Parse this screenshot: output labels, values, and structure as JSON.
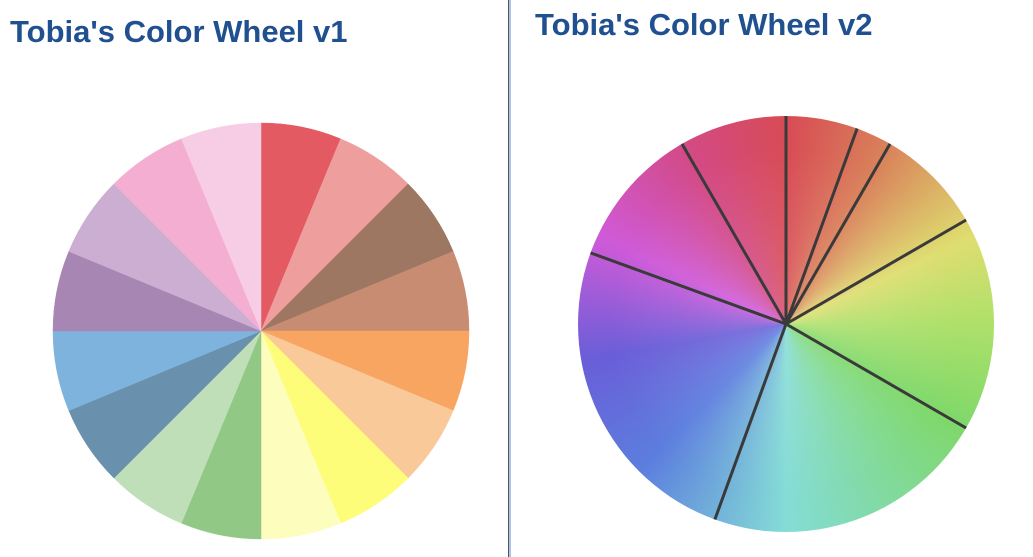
{
  "v1": {
    "title": "Tobia's Color Wheel v1",
    "slices": [
      "#e35a63",
      "#ef9e9e",
      "#9e7762",
      "#c88c72",
      "#f8a561",
      "#f9c99a",
      "#fdfd7a",
      "#fdfdbd",
      "#92c886",
      "#bfdfb8",
      "#6990ad",
      "#7db3dd",
      "#a886b4",
      "#cbaed2",
      "#f4aed2",
      "#f7cde5"
    ]
  },
  "v2": {
    "title": "Tobia's Color Wheel v2",
    "gradient_stops": [
      {
        "deg": 0,
        "color": "#d84b55"
      },
      {
        "deg": 30,
        "color": "#d9825a"
      },
      {
        "deg": 65,
        "color": "#dede70"
      },
      {
        "deg": 90,
        "color": "#aee06a"
      },
      {
        "deg": 120,
        "color": "#7fd86a"
      },
      {
        "deg": 180,
        "color": "#84dcd6"
      },
      {
        "deg": 225,
        "color": "#5c7ede"
      },
      {
        "deg": 260,
        "color": "#6a5ed8"
      },
      {
        "deg": 295,
        "color": "#cf5ad8"
      },
      {
        "deg": 330,
        "color": "#d34a86"
      },
      {
        "deg": 360,
        "color": "#d84b55"
      }
    ],
    "separator_angles_deg": [
      0,
      20,
      30,
      60,
      120,
      200,
      290,
      330
    ],
    "separator_color": "#3a3a3a"
  },
  "divider_color": "#a9c3ea"
}
